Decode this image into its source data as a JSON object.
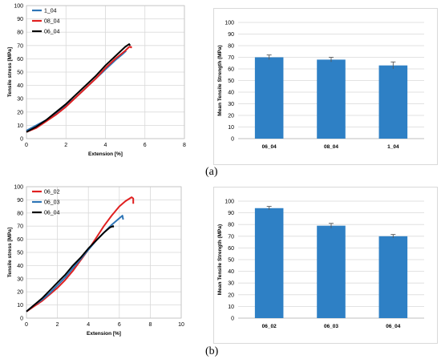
{
  "figure_labels": {
    "a": "(a)",
    "b": "(b)"
  },
  "chart_data": [
    {
      "id": "a-line",
      "type": "line",
      "title": "",
      "xlabel": "Extension [%]",
      "ylabel": "Tensile stress [MPa]",
      "xlim": [
        0,
        8
      ],
      "ylim": [
        0,
        100
      ],
      "xticks": [
        "0",
        "2",
        "4",
        "6",
        "8"
      ],
      "yticks": [
        "0",
        "10",
        "20",
        "30",
        "40",
        "50",
        "60",
        "70",
        "80",
        "90",
        "100"
      ],
      "legend_position": "top-left",
      "series": [
        {
          "name": "1_04",
          "color": "#2e75b6",
          "x": [
            0,
            0.5,
            1,
            1.5,
            2,
            2.5,
            3,
            3.5,
            4,
            4.5,
            4.9,
            5.05
          ],
          "y": [
            6,
            10,
            14,
            19,
            25,
            31,
            38,
            45,
            52,
            59,
            64,
            66
          ]
        },
        {
          "name": "08_04",
          "color": "#e02020",
          "x": [
            0,
            0.5,
            1,
            1.5,
            2,
            2.5,
            3,
            3.5,
            4,
            4.5,
            5,
            5.2,
            5.3,
            5.3
          ],
          "y": [
            5,
            8,
            13,
            18,
            24,
            31,
            38,
            45,
            53,
            60,
            66,
            69,
            69,
            68
          ]
        },
        {
          "name": "06_04",
          "color": "#000000",
          "x": [
            0,
            0.5,
            1,
            1.5,
            2,
            2.5,
            3,
            3.5,
            4,
            4.5,
            5,
            5.2,
            5.25
          ],
          "y": [
            5,
            9,
            14,
            20,
            26,
            33,
            40,
            47,
            55,
            62,
            69,
            71,
            70
          ]
        }
      ]
    },
    {
      "id": "a-bar",
      "type": "bar",
      "title": "",
      "xlabel": "",
      "ylabel": "Mean Tensile Strength (MPa)",
      "ylim": [
        0,
        100
      ],
      "yticks": [
        "0",
        "10",
        "20",
        "30",
        "40",
        "50",
        "60",
        "70",
        "80",
        "90",
        "100"
      ],
      "color": "#2e80c5",
      "categories": [
        "06_04",
        "08_04",
        "1_04"
      ],
      "values": [
        70,
        68,
        63
      ],
      "errors": [
        2,
        2,
        3
      ]
    },
    {
      "id": "b-line",
      "type": "line",
      "title": "",
      "xlabel": "Extension [%]",
      "ylabel": "Tensile stress [MPa]",
      "xlim": [
        0,
        10
      ],
      "ylim": [
        0,
        100
      ],
      "xticks": [
        "0",
        "2",
        "4",
        "6",
        "8",
        "10"
      ],
      "yticks": [
        "0",
        "10",
        "20",
        "30",
        "40",
        "50",
        "60",
        "70",
        "80",
        "90",
        "100"
      ],
      "legend_position": "top-left",
      "series": [
        {
          "name": "06_02",
          "color": "#e02020",
          "x": [
            0,
            0.5,
            1,
            1.5,
            2,
            2.5,
            3,
            3.5,
            4,
            4.5,
            5,
            5.5,
            6,
            6.4,
            6.8,
            6.9,
            6.9
          ],
          "y": [
            5,
            9,
            13,
            18,
            23,
            29,
            36,
            44,
            52,
            61,
            70,
            78,
            85,
            89,
            92,
            91,
            87
          ]
        },
        {
          "name": "06_03",
          "color": "#2e75b6",
          "x": [
            0,
            0.5,
            1,
            1.5,
            2,
            2.5,
            3,
            3.5,
            4,
            4.5,
            5,
            5.5,
            6,
            6.2,
            6.25
          ],
          "y": [
            5,
            10,
            14,
            19,
            25,
            31,
            38,
            45,
            52,
            59,
            65,
            71,
            76,
            78,
            75
          ]
        },
        {
          "name": "06_04",
          "color": "#000000",
          "x": [
            0,
            0.5,
            1,
            1.5,
            2,
            2.5,
            3,
            3.5,
            4,
            4.5,
            5,
            5.4,
            5.6,
            5.6
          ],
          "y": [
            5,
            10,
            15,
            21,
            27,
            33,
            40,
            46,
            53,
            59,
            65,
            69,
            70,
            69
          ]
        }
      ]
    },
    {
      "id": "b-bar",
      "type": "bar",
      "title": "",
      "xlabel": "",
      "ylabel": "Mean Tensile Strength (MPa)",
      "ylim": [
        0,
        100
      ],
      "yticks": [
        "0",
        "10",
        "20",
        "30",
        "40",
        "50",
        "60",
        "70",
        "80",
        "90",
        "100"
      ],
      "color": "#2e80c5",
      "categories": [
        "06_02",
        "06_03",
        "06_04"
      ],
      "values": [
        94,
        79,
        70
      ],
      "errors": [
        1.5,
        2,
        1.5
      ]
    }
  ]
}
